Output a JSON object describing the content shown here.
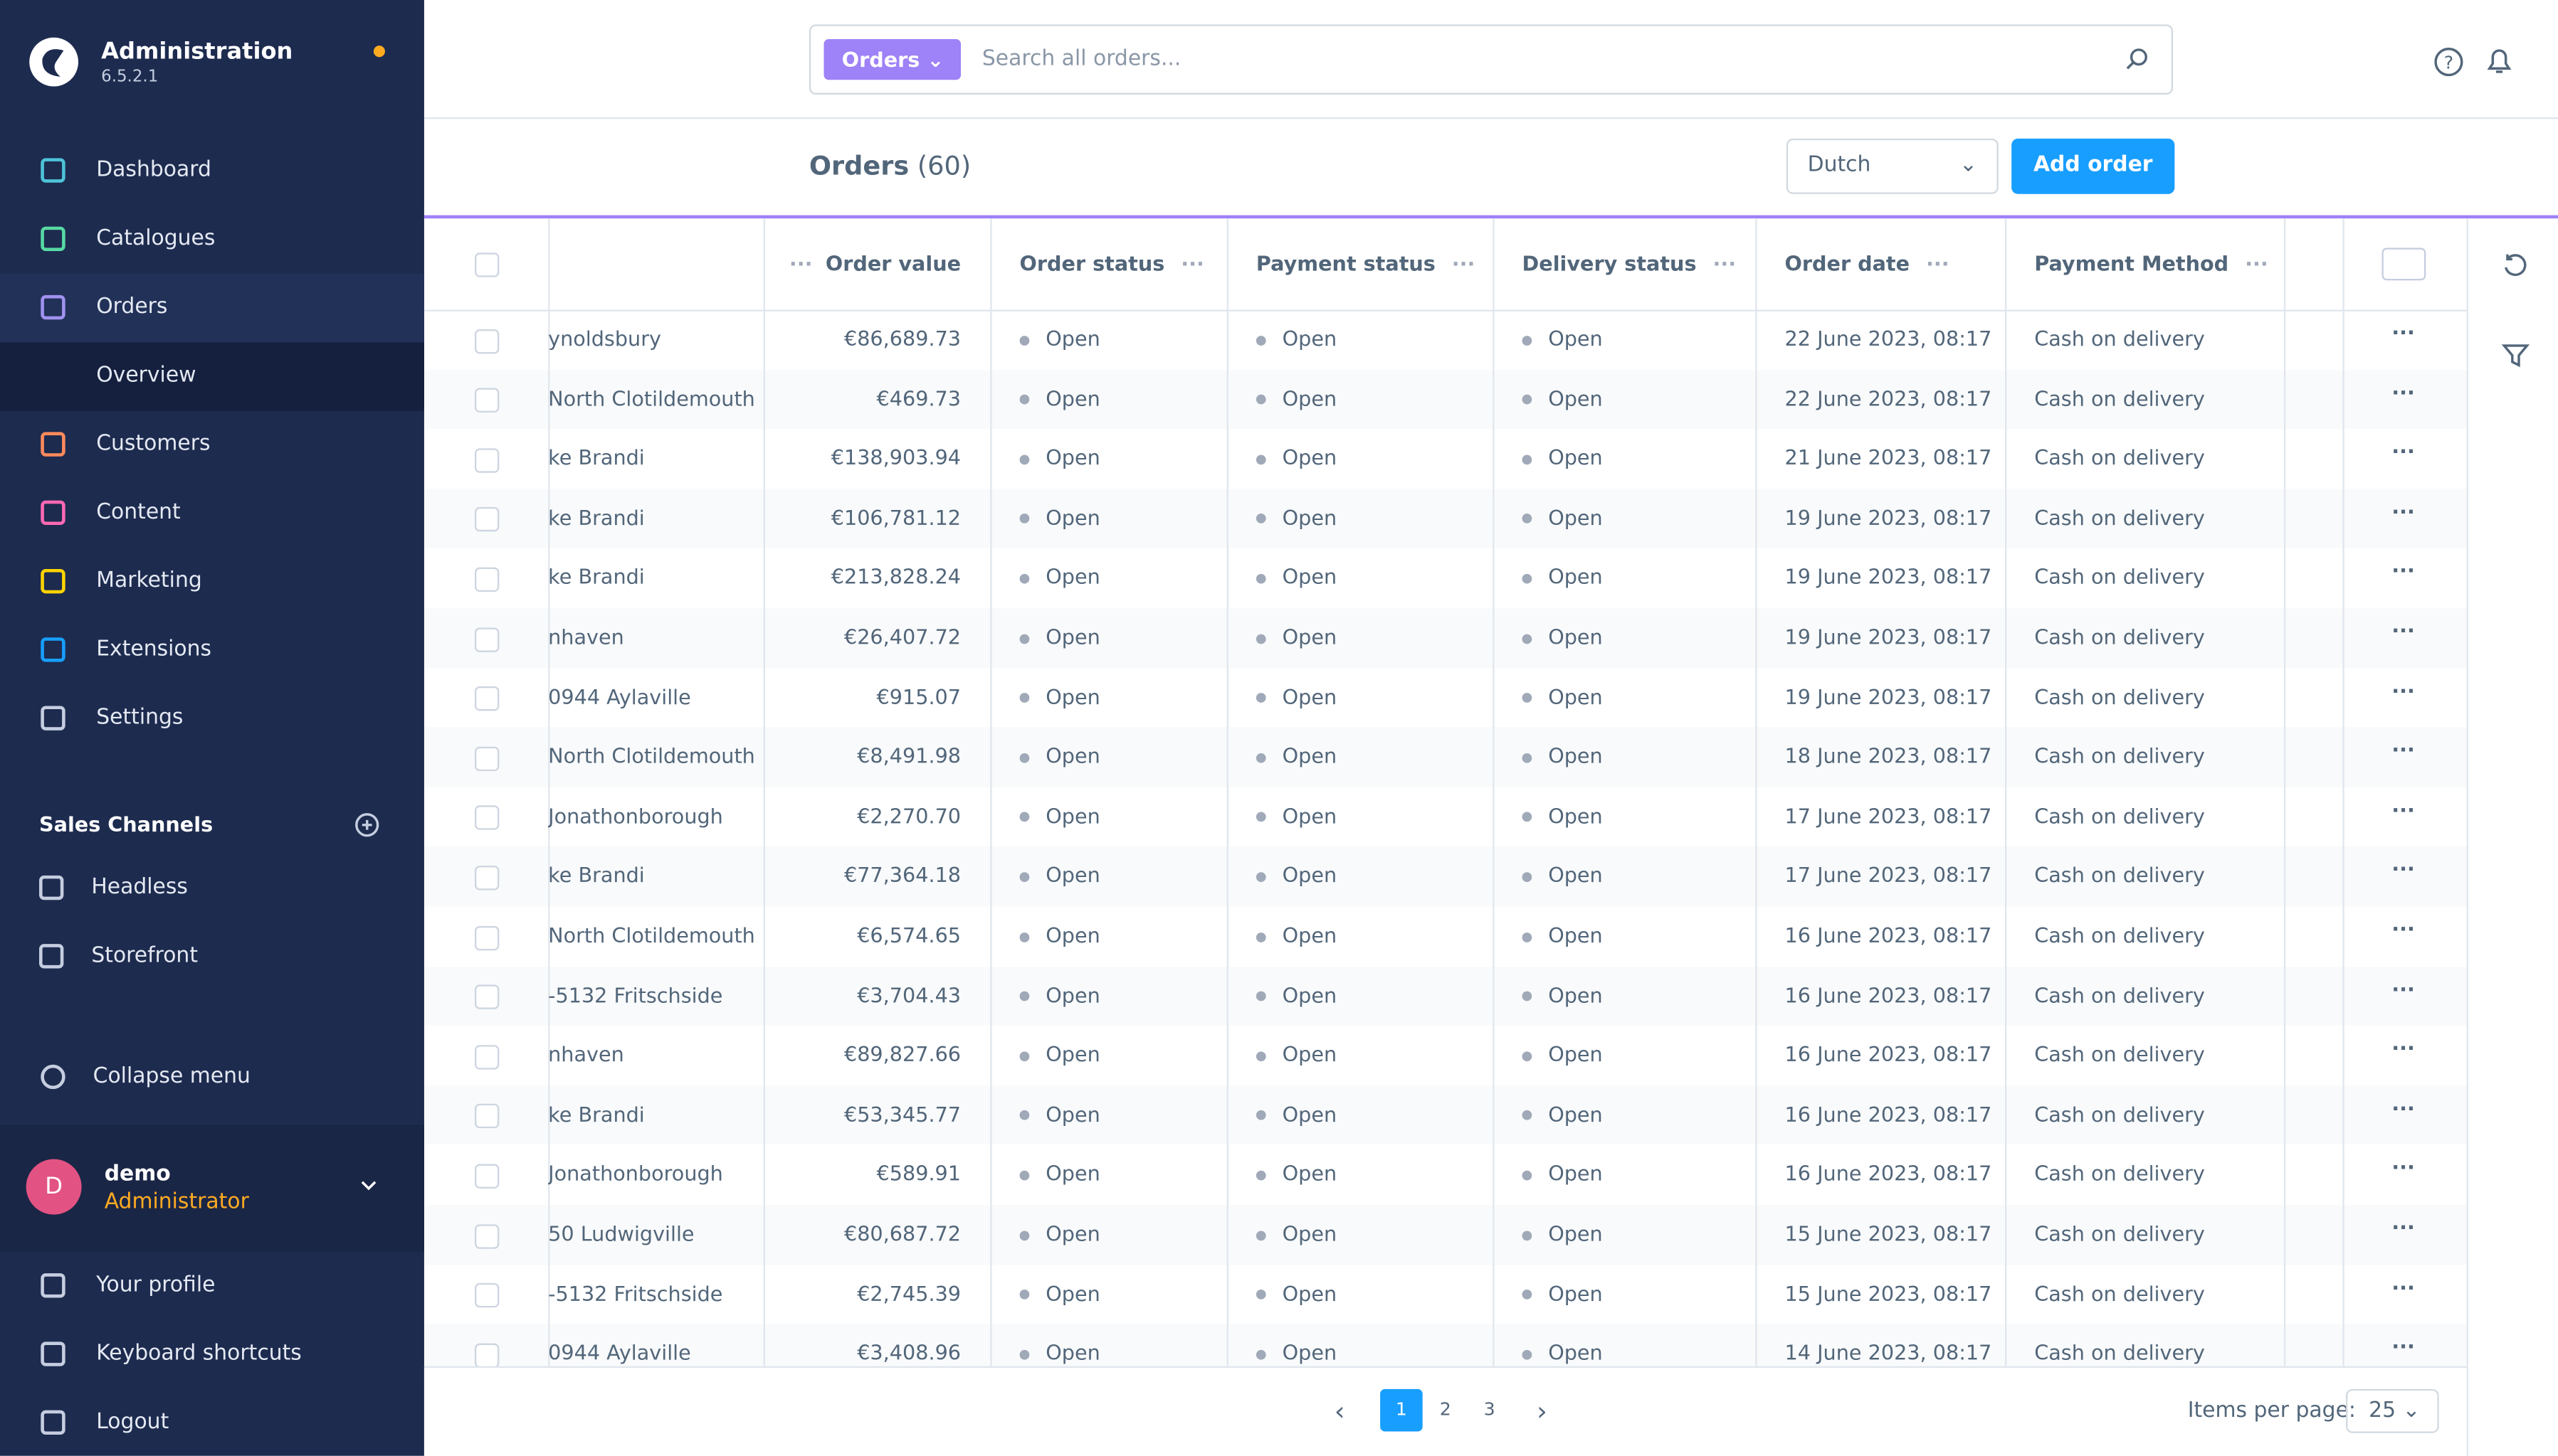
{
  "sidebar": {
    "title": "Administration",
    "version": "6.5.2.1",
    "nav": [
      "Dashboard",
      "Catalogues",
      "Orders",
      "Customers",
      "Content",
      "Marketing",
      "Extensions",
      "Settings"
    ],
    "sub_nav": "Overview",
    "sales_channels_title": "Sales Channels",
    "sales_channels": [
      "Headless",
      "Storefront"
    ],
    "collapse": "Collapse menu",
    "user": {
      "initial": "D",
      "name": "demo",
      "role": "Administrator"
    },
    "user_menu": [
      "Your profile",
      "Keyboard shortcuts",
      "Logout"
    ]
  },
  "header": {
    "search_type": "Orders",
    "search_placeholder": "Search all orders..."
  },
  "page": {
    "title": "Orders",
    "count": "(60)",
    "language": "Dutch",
    "add_button": "Add order"
  },
  "table": {
    "columns": [
      "Order value",
      "Order status",
      "Payment status",
      "Delivery status",
      "Order date",
      "Payment Method"
    ],
    "rows": [
      [
        "ynoldsbury",
        "€86,689.73",
        "Open",
        "Open",
        "Open",
        "22 June 2023, 08:17",
        "Cash on delivery"
      ],
      [
        "North Clotildemouth",
        "€469.73",
        "Open",
        "Open",
        "Open",
        "22 June 2023, 08:17",
        "Cash on delivery"
      ],
      [
        "ke Brandi",
        "€138,903.94",
        "Open",
        "Open",
        "Open",
        "21 June 2023, 08:17",
        "Cash on delivery"
      ],
      [
        "ke Brandi",
        "€106,781.12",
        "Open",
        "Open",
        "Open",
        "19 June 2023, 08:17",
        "Cash on delivery"
      ],
      [
        "ke Brandi",
        "€213,828.24",
        "Open",
        "Open",
        "Open",
        "19 June 2023, 08:17",
        "Cash on delivery"
      ],
      [
        "nhaven",
        "€26,407.72",
        "Open",
        "Open",
        "Open",
        "19 June 2023, 08:17",
        "Cash on delivery"
      ],
      [
        "0944 Aylaville",
        "€915.07",
        "Open",
        "Open",
        "Open",
        "19 June 2023, 08:17",
        "Cash on delivery"
      ],
      [
        "North Clotildemouth",
        "€8,491.98",
        "Open",
        "Open",
        "Open",
        "18 June 2023, 08:17",
        "Cash on delivery"
      ],
      [
        "Jonathonborough",
        "€2,270.70",
        "Open",
        "Open",
        "Open",
        "17 June 2023, 08:17",
        "Cash on delivery"
      ],
      [
        "ke Brandi",
        "€77,364.18",
        "Open",
        "Open",
        "Open",
        "17 June 2023, 08:17",
        "Cash on delivery"
      ],
      [
        "North Clotildemouth",
        "€6,574.65",
        "Open",
        "Open",
        "Open",
        "16 June 2023, 08:17",
        "Cash on delivery"
      ],
      [
        "-5132 Fritschside",
        "€3,704.43",
        "Open",
        "Open",
        "Open",
        "16 June 2023, 08:17",
        "Cash on delivery"
      ],
      [
        "nhaven",
        "€89,827.66",
        "Open",
        "Open",
        "Open",
        "16 June 2023, 08:17",
        "Cash on delivery"
      ],
      [
        "ke Brandi",
        "€53,345.77",
        "Open",
        "Open",
        "Open",
        "16 June 2023, 08:17",
        "Cash on delivery"
      ],
      [
        "Jonathonborough",
        "€589.91",
        "Open",
        "Open",
        "Open",
        "16 June 2023, 08:17",
        "Cash on delivery"
      ],
      [
        "50 Ludwigville",
        "€80,687.72",
        "Open",
        "Open",
        "Open",
        "15 June 2023, 08:17",
        "Cash on delivery"
      ],
      [
        "-5132 Fritschside",
        "€2,745.39",
        "Open",
        "Open",
        "Open",
        "15 June 2023, 08:17",
        "Cash on delivery"
      ],
      [
        "0944 Aylaville",
        "€3,408.96",
        "Open",
        "Open",
        "Open",
        "14 June 2023, 08:17",
        "Cash on delivery"
      ]
    ]
  },
  "pagination": {
    "pages": [
      1,
      2,
      3
    ],
    "items_per_page_label": "Items per page:",
    "items_per_page": 25
  }
}
